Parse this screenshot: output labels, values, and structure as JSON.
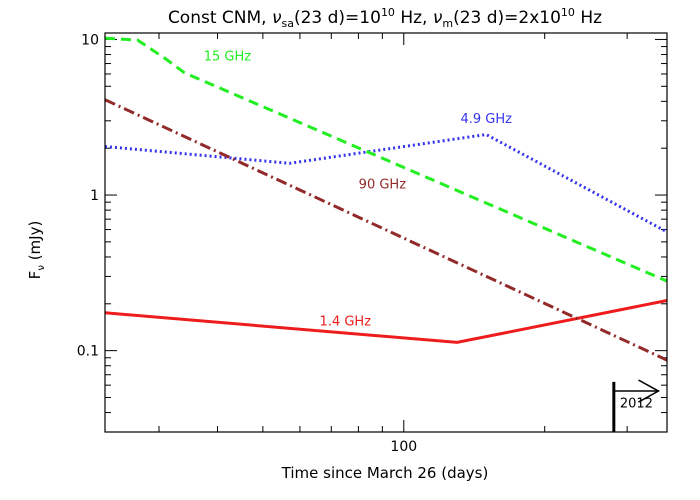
{
  "chart_data": {
    "type": "line",
    "title": {
      "prefix": "Const CNM, ",
      "nu": "ν",
      "sa_sub": "sa",
      "mid1": "(23 d)=10",
      "sup1": "10",
      "mid2": " Hz, ",
      "m_sub": "m",
      "mid3": "(23 d)=2x10",
      "sup2": "10",
      "suffix": " Hz"
    },
    "xlabel": "Time since March 26 (days)",
    "ylabel": {
      "main": "F",
      "sub": "ν",
      "unit": " (mJy)"
    },
    "x_scale": "log",
    "y_scale": "log",
    "xlim": [
      23,
      365
    ],
    "ylim": [
      0.03,
      11
    ],
    "x_ticks": [
      {
        "value": 100,
        "label": "100"
      }
    ],
    "y_ticks": [
      {
        "value": 10,
        "label": "10"
      },
      {
        "value": 1,
        "label": "1"
      },
      {
        "value": 0.1,
        "label": "0.1"
      }
    ],
    "series": [
      {
        "name": "1.4 GHz",
        "color": "#ee1c1c",
        "style": "solid",
        "label_at": [
          75,
          0.145
        ],
        "x": [
          23,
          130,
          365
        ],
        "y": [
          0.175,
          0.113,
          0.21
        ]
      },
      {
        "name": "4.9 GHz",
        "color": "#3333ee",
        "style": "dotted",
        "label_at": [
          150,
          2.9
        ],
        "x": [
          23,
          57,
          150,
          365
        ],
        "y": [
          2.05,
          1.6,
          2.45,
          0.58
        ]
      },
      {
        "name": "15 GHz",
        "color": "#22ee22",
        "style": "dashed",
        "label_at": [
          42,
          7.3
        ],
        "x": [
          23,
          27,
          31,
          34,
          365
        ],
        "y": [
          10.2,
          9.9,
          7.5,
          6.1,
          0.28
        ]
      },
      {
        "name": "90 GHz",
        "color": "#922a2a",
        "style": "dashdot",
        "label_at": [
          90,
          1.1
        ],
        "x": [
          23,
          365
        ],
        "y": [
          4.1,
          0.087
        ]
      }
    ],
    "annotation": {
      "label": "2012",
      "x": 281,
      "arrow_to_x": 350,
      "y_bottom": 0.03,
      "y_top": 0.063,
      "y_arrow": 0.055,
      "y_text": 0.043
    }
  }
}
